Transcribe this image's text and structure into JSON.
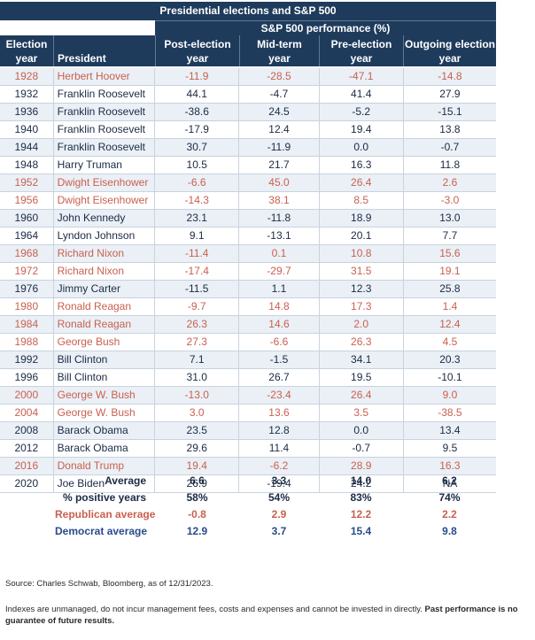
{
  "title": "Presidential elections and S&P 500",
  "subtitle": "S&P 500 performance (%)",
  "headers": {
    "year_line1": "Election",
    "year_line2": "year",
    "president": "President",
    "post_line1": "Post-election",
    "post_line2": "year",
    "mid_line1": "Mid-term",
    "mid_line2": "year",
    "pre_line1": "Pre-election",
    "pre_line2": "year",
    "out_line1": "Outgoing election",
    "out_line2": "year"
  },
  "rows": [
    {
      "year": "1928",
      "president": "Herbert Hoover",
      "party": "rep",
      "post": "-11.9",
      "mid": "-28.5",
      "pre": "-47.1",
      "out": "-14.8"
    },
    {
      "year": "1932",
      "president": "Franklin Roosevelt",
      "party": "dem",
      "post": "44.1",
      "mid": "-4.7",
      "pre": "41.4",
      "out": "27.9"
    },
    {
      "year": "1936",
      "president": "Franklin Roosevelt",
      "party": "dem",
      "post": "-38.6",
      "mid": "24.5",
      "pre": "-5.2",
      "out": "-15.1"
    },
    {
      "year": "1940",
      "president": "Franklin Roosevelt",
      "party": "dem",
      "post": "-17.9",
      "mid": "12.4",
      "pre": "19.4",
      "out": "13.8"
    },
    {
      "year": "1944",
      "president": "Franklin Roosevelt",
      "party": "dem",
      "post": "30.7",
      "mid": "-11.9",
      "pre": "0.0",
      "out": "-0.7"
    },
    {
      "year": "1948",
      "president": "Harry Truman",
      "party": "dem",
      "post": "10.5",
      "mid": "21.7",
      "pre": "16.3",
      "out": "11.8"
    },
    {
      "year": "1952",
      "president": "Dwight Eisenhower",
      "party": "rep",
      "post": "-6.6",
      "mid": "45.0",
      "pre": "26.4",
      "out": "2.6"
    },
    {
      "year": "1956",
      "president": "Dwight Eisenhower",
      "party": "rep",
      "post": "-14.3",
      "mid": "38.1",
      "pre": "8.5",
      "out": "-3.0"
    },
    {
      "year": "1960",
      "president": "John Kennedy",
      "party": "dem",
      "post": "23.1",
      "mid": "-11.8",
      "pre": "18.9",
      "out": "13.0"
    },
    {
      "year": "1964",
      "president": "Lyndon Johnson",
      "party": "dem",
      "post": "9.1",
      "mid": "-13.1",
      "pre": "20.1",
      "out": "7.7"
    },
    {
      "year": "1968",
      "president": "Richard Nixon",
      "party": "rep",
      "post": "-11.4",
      "mid": "0.1",
      "pre": "10.8",
      "out": "15.6"
    },
    {
      "year": "1972",
      "president": "Richard Nixon",
      "party": "rep",
      "post": "-17.4",
      "mid": "-29.7",
      "pre": "31.5",
      "out": "19.1"
    },
    {
      "year": "1976",
      "president": "Jimmy Carter",
      "party": "dem",
      "post": "-11.5",
      "mid": "1.1",
      "pre": "12.3",
      "out": "25.8"
    },
    {
      "year": "1980",
      "president": "Ronald Reagan",
      "party": "rep",
      "post": "-9.7",
      "mid": "14.8",
      "pre": "17.3",
      "out": "1.4"
    },
    {
      "year": "1984",
      "president": "Ronald Reagan",
      "party": "rep",
      "post": "26.3",
      "mid": "14.6",
      "pre": "2.0",
      "out": "12.4"
    },
    {
      "year": "1988",
      "president": "George Bush",
      "party": "rep",
      "post": "27.3",
      "mid": "-6.6",
      "pre": "26.3",
      "out": "4.5"
    },
    {
      "year": "1992",
      "president": "Bill Clinton",
      "party": "dem",
      "post": "7.1",
      "mid": "-1.5",
      "pre": "34.1",
      "out": "20.3"
    },
    {
      "year": "1996",
      "president": "Bill Clinton",
      "party": "dem",
      "post": "31.0",
      "mid": "26.7",
      "pre": "19.5",
      "out": "-10.1"
    },
    {
      "year": "2000",
      "president": "George W. Bush",
      "party": "rep",
      "post": "-13.0",
      "mid": "-23.4",
      "pre": "26.4",
      "out": "9.0"
    },
    {
      "year": "2004",
      "president": "George W. Bush",
      "party": "rep",
      "post": "3.0",
      "mid": "13.6",
      "pre": "3.5",
      "out": "-38.5"
    },
    {
      "year": "2008",
      "president": "Barack Obama",
      "party": "dem",
      "post": "23.5",
      "mid": "12.8",
      "pre": "0.0",
      "out": "13.4"
    },
    {
      "year": "2012",
      "president": "Barack Obama",
      "party": "dem",
      "post": "29.6",
      "mid": "11.4",
      "pre": "-0.7",
      "out": "9.5"
    },
    {
      "year": "2016",
      "president": "Donald Trump",
      "party": "rep",
      "post": "19.4",
      "mid": "-6.2",
      "pre": "28.9",
      "out": "16.3"
    },
    {
      "year": "2020",
      "president": "Joe Biden",
      "party": "dem",
      "post": "26.9",
      "mid": "-19.4",
      "pre": "24.2",
      "out": "NA"
    }
  ],
  "summary": [
    {
      "label": "Average",
      "style": "dark",
      "align": "right",
      "post": "6.6",
      "mid": "3.3",
      "pre": "14.0",
      "out": "6.2"
    },
    {
      "label": "% positive years",
      "style": "dark",
      "align": "right",
      "post": "58%",
      "mid": "54%",
      "pre": "83%",
      "out": "74%"
    },
    {
      "label": "Republican average",
      "style": "red",
      "align": "left",
      "post": "-0.8",
      "mid": "2.9",
      "pre": "12.2",
      "out": "2.2"
    },
    {
      "label": "Democrat average",
      "style": "blue",
      "align": "left",
      "post": "12.9",
      "mid": "3.7",
      "pre": "15.4",
      "out": "9.8"
    }
  ],
  "source": "Source: Charles Schwab, Bloomberg, as of 12/31/2023.",
  "disclaimer": "Indexes are unmanaged, do not incur management fees, costs and expenses and cannot be invested in directly.",
  "disclaimer_bold": "Past performance is no guarantee of future results.",
  "colors": {
    "header_bg": "#1f3b5c",
    "republican": "#c96050",
    "democrat_avg": "#2a4b8a",
    "stripe": "#eaf0f6"
  }
}
